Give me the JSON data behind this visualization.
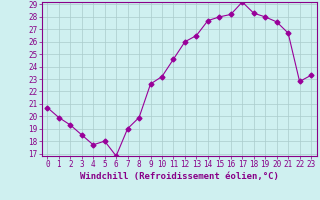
{
  "x": [
    0,
    1,
    2,
    3,
    4,
    5,
    6,
    7,
    8,
    9,
    10,
    11,
    12,
    13,
    14,
    15,
    16,
    17,
    18,
    19,
    20,
    21,
    22,
    23
  ],
  "y": [
    20.7,
    19.9,
    19.3,
    18.5,
    17.7,
    18.0,
    16.8,
    19.0,
    19.9,
    22.6,
    23.2,
    24.6,
    26.0,
    26.5,
    27.7,
    28.0,
    28.2,
    29.2,
    28.3,
    28.0,
    27.6,
    26.7,
    22.8,
    23.3
  ],
  "line_color": "#990099",
  "marker": "D",
  "marker_size": 2.5,
  "bg_color": "#cff0f0",
  "grid_color": "#aacccc",
  "xlabel": "Windchill (Refroidissement éolien,°C)",
  "ylim": [
    17,
    29
  ],
  "xlim": [
    -0.5,
    23.5
  ],
  "yticks": [
    17,
    18,
    19,
    20,
    21,
    22,
    23,
    24,
    25,
    26,
    27,
    28,
    29
  ],
  "xticks": [
    0,
    1,
    2,
    3,
    4,
    5,
    6,
    7,
    8,
    9,
    10,
    11,
    12,
    13,
    14,
    15,
    16,
    17,
    18,
    19,
    20,
    21,
    22,
    23
  ],
  "tick_color": "#880088",
  "label_color": "#880088",
  "tick_fontsize": 5.5,
  "xlabel_fontsize": 6.5
}
